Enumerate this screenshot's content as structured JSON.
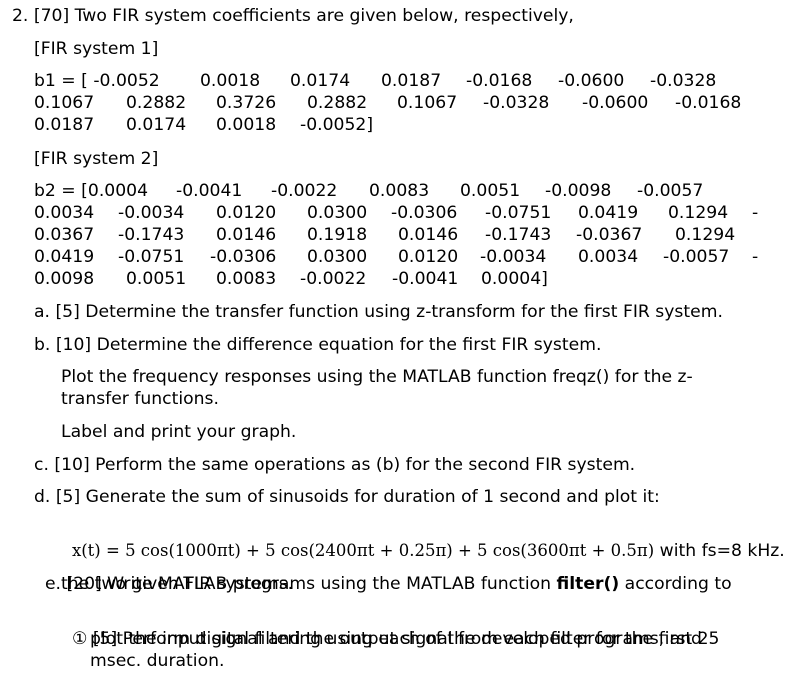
{
  "problem": {
    "heading": "2. [70] Two FIR system coefficients are given below, respectively,",
    "sys1": {
      "label": "[FIR system 1]",
      "lines": [
        [
          "b1 = [ -0.0052",
          "0.0018",
          "0.0174",
          "0.0187",
          "-0.0168",
          "-0.0600",
          "-0.0328"
        ],
        [
          "0.1067",
          "0.2882",
          "0.3726",
          "0.2882",
          "0.1067",
          "-0.0328",
          "-0.0600",
          "-0.0168"
        ],
        [
          "0.0187",
          "0.0174",
          "0.0018",
          "-0.0052]"
        ]
      ]
    },
    "sys2": {
      "label": "[FIR system 2]",
      "lines": [
        [
          "b2 = [0.0004",
          "-0.0041",
          "-0.0022",
          "0.0083",
          "0.0051",
          "-0.0098",
          "-0.0057"
        ],
        [
          "0.0034",
          "-0.0034",
          "0.0120",
          "0.0300",
          "-0.0306",
          "-0.0751",
          "0.0419",
          "0.1294",
          "-"
        ],
        [
          "0.0367",
          "-0.1743",
          "0.0146",
          "0.1918",
          "0.0146",
          "-0.1743",
          "-0.0367",
          "0.1294"
        ],
        [
          "0.0419",
          "-0.0751",
          "-0.0306",
          "0.0300",
          "0.0120",
          "-0.0034",
          "0.0034",
          "-0.0057",
          "-"
        ],
        [
          "0.0098",
          "0.0051",
          "0.0083",
          "-0.0022",
          "-0.0041",
          "0.0004]"
        ]
      ]
    },
    "a": "a. [5] Determine the transfer function using z-transform for the first FIR system.",
    "b": "b. [10] Determine the difference equation for the first FIR system.",
    "b_plot_1": "Plot the frequency responses using the MATLAB function freqz() for the z-",
    "b_plot_2": "transfer functions.",
    "b_label": "Label and print your graph.",
    "c": "c. [10] Perform the same operations as (b) for the second FIR system.",
    "d": "d. [5] Generate the sum of sinusoids for duration of 1 second and plot it:",
    "d_eq": {
      "lhs": "x(t) = 5 cos(1000πt) + 5 cos(2400πt + 0.25π) + 5 cos(3600πt + 0.5π)",
      "tail": " with fs=8 kHz."
    },
    "e_1_pre": "e. [20] Write MATLAB programs using the MATLAB function ",
    "e_1_bold": "filter()",
    "e_1_post": " according to",
    "e_2": "the two given FIR systems.",
    "e_sub_mark": "①",
    "e_sub_1": "[5] Perform digital filtering using each of the developed programs, and",
    "e_sub_2": "plot the input signal and the output signal from each filter for the first 25",
    "e_sub_3": "msec. duration."
  }
}
